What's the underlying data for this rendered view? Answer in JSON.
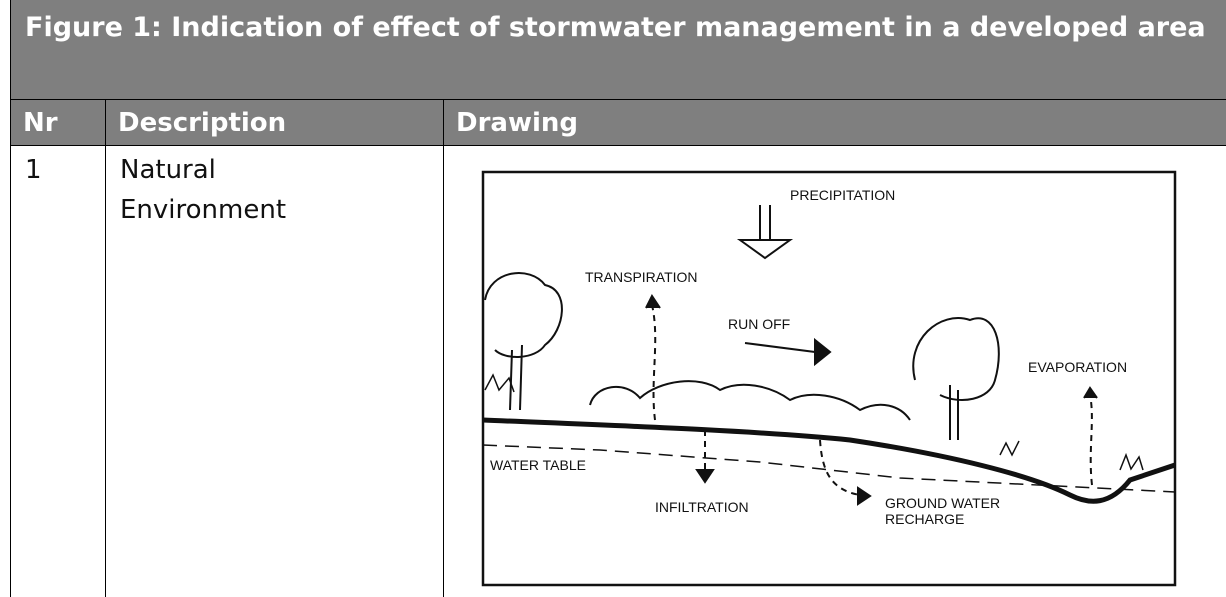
{
  "header": {
    "title": "Figure 1: Indication of effect of stormwater management in a developed area"
  },
  "table": {
    "columns": [
      "Nr",
      "Description",
      "Drawing"
    ],
    "rows": [
      {
        "nr": "1",
        "description": "Natural Environment",
        "drawing": {
          "labels": [
            "PRECIPITATION",
            "TRANSPIRATION",
            "RUN OFF",
            "EVAPORATION",
            "WATER TABLE",
            "INFILTRATION",
            "GROUND WATER",
            "RECHARGE"
          ]
        }
      }
    ]
  }
}
